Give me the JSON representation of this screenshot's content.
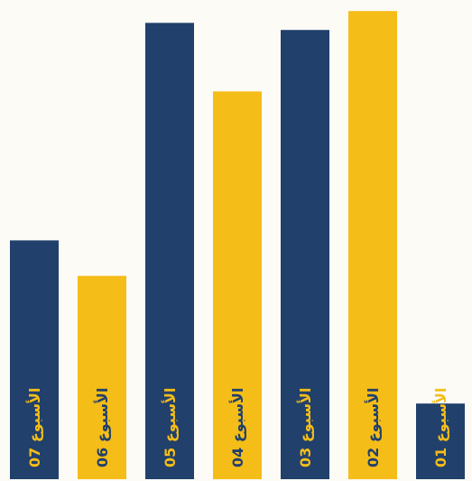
{
  "chart_data": {
    "type": "bar",
    "categories": [
      "الأسبوع 07",
      "الأسبوع 06",
      "الأسبوع 05",
      "الأسبوع 04",
      "الأسبوع 03",
      "الأسبوع 02",
      "الأسبوع 01"
    ],
    "values": [
      50.5,
      43.0,
      96.5,
      82.0,
      95.0,
      99.0,
      16.0
    ],
    "ylim": [
      0,
      100
    ],
    "title": "",
    "xlabel": "",
    "ylabel": "",
    "grid": false,
    "legend": "none",
    "colors": [
      "#21406b",
      "#f5bd18",
      "#21406b",
      "#f5bd18",
      "#21406b",
      "#f5bd18",
      "#21406b"
    ],
    "label_colors": [
      "#f5bd18",
      "#21406b",
      "#f5bd18",
      "#21406b",
      "#f5bd18",
      "#21406b",
      "#f5bd18"
    ]
  }
}
